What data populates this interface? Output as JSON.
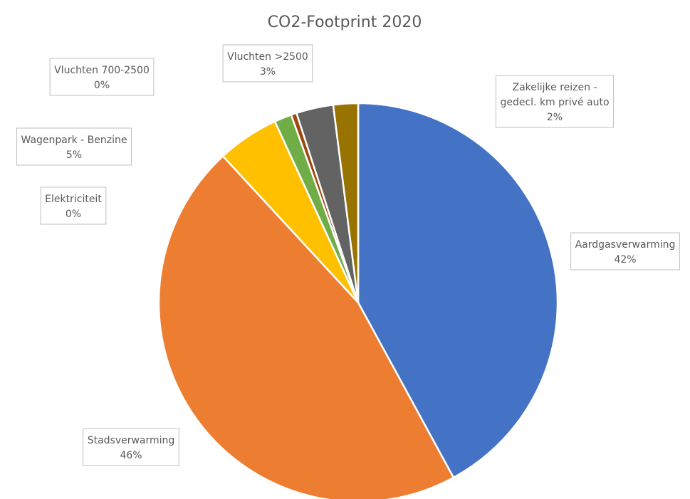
{
  "chart_data": {
    "type": "pie",
    "title": "CO2-Footprint 2020",
    "slices": [
      {
        "name": "Aardgasverwarming",
        "value": 42,
        "label": "42%",
        "color": "#4472C4"
      },
      {
        "name": "Stadsverwarming",
        "value": 46,
        "label": "46%",
        "color": "#ED7D31"
      },
      {
        "name": "Wagenpark - Benzine",
        "value": 5,
        "label": "5%",
        "color": "#FFC000"
      },
      {
        "name": "",
        "value": 1.4,
        "label": "",
        "color": "#70AD47"
      },
      {
        "name": "Elektriciteit",
        "value": 0,
        "label": "0%",
        "color": "#FFFFFF"
      },
      {
        "name": "Vluchten 700-2500",
        "value": 0.45,
        "label": "0%",
        "color": "#9E480E"
      },
      {
        "name": "Vluchten >2500",
        "value": 3,
        "label": "3%",
        "color": "#636363"
      },
      {
        "name": "Zakelijke reizen - gedecl. km privé auto",
        "value": 2,
        "label": "2%",
        "color": "#997300"
      }
    ],
    "legend": "none",
    "data_labels": "callouts"
  }
}
